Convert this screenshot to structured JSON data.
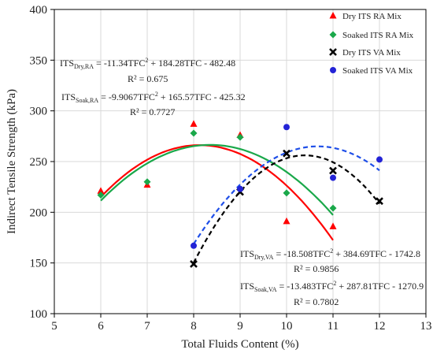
{
  "chart_data": {
    "type": "scatter",
    "xlabel": "Total Fluids Content (%)",
    "ylabel": "Indirect Tensile Strength (kPa)",
    "xlim": [
      5,
      13
    ],
    "ylim": [
      100,
      400
    ],
    "x_ticks": [
      "5",
      "6",
      "7",
      "8",
      "9",
      "10",
      "11",
      "12",
      "13"
    ],
    "y_ticks": [
      "100",
      "150",
      "200",
      "250",
      "300",
      "350",
      "400"
    ],
    "grid": true,
    "legend_position": "top-right",
    "series": [
      {
        "name": "Dry ITS RA Mix",
        "marker": "triangle",
        "color": "#ff0000",
        "x": [
          6,
          7,
          8,
          9,
          10,
          11
        ],
        "y": [
          221,
          227,
          287,
          276,
          191,
          186
        ],
        "fit": {
          "a": -11.34,
          "b": 184.28,
          "c": -482.48,
          "range": [
            6,
            11
          ],
          "color": "#ff0000",
          "dash": "solid"
        }
      },
      {
        "name": "Soaked ITS RA Mix",
        "marker": "diamond",
        "color": "#1aa84a",
        "x": [
          6,
          7,
          8,
          9,
          10,
          11
        ],
        "y": [
          217,
          230,
          278,
          274,
          219,
          204
        ],
        "fit": {
          "a": -9.9067,
          "b": 165.57,
          "c": -425.32,
          "range": [
            6,
            11
          ],
          "color": "#1aa84a",
          "dash": "solid"
        }
      },
      {
        "name": "Dry ITS VA Mix",
        "marker": "cross",
        "color": "#000000",
        "x": [
          8,
          9,
          10,
          11,
          12
        ],
        "y": [
          149,
          220,
          258,
          241,
          211
        ],
        "fit": {
          "a": -18.508,
          "b": 384.69,
          "c": -1742.8,
          "range": [
            8,
            12
          ],
          "color": "#000000",
          "dash": "dashed"
        }
      },
      {
        "name": "Soaked ITS VA Mix",
        "marker": "circle",
        "color": "#2323d6",
        "x": [
          8,
          9,
          10,
          11,
          12
        ],
        "y": [
          167,
          223,
          284,
          234,
          252
        ],
        "fit": {
          "a": -13.483,
          "b": 287.81,
          "c": -1270.9,
          "range": [
            8,
            12
          ],
          "color": "#1f4fe8",
          "dash": "dashed"
        }
      }
    ],
    "annotations": [
      {
        "prefix": "ITS",
        "sub": "Dry,RA",
        "eq_start": " = -11.34TFC",
        "sup": "2",
        "eq_end": " + 184.28TFC - 482.48",
        "r2": "R² = 0.675"
      },
      {
        "prefix": "ITS",
        "sub": "Soak,RA",
        "eq_start": " = -9.9067TFC",
        "sup": "2",
        "eq_end": " + 165.57TFC - 425.32",
        "r2": "R² = 0.7727"
      },
      {
        "prefix": "ITS",
        "sub": "Dry,VA",
        "eq_start": " = -18.508TFC",
        "sup": "2",
        "eq_end": " + 384.69TFC - 1742.8",
        "r2": "R² = 0.9856"
      },
      {
        "prefix": "ITS",
        "sub": "Soak,VA",
        "eq_start": " = -13.483TFC",
        "sup": "2",
        "eq_end": " + 287.81TFC - 1270.9",
        "r2": "R² = 0.7802"
      }
    ]
  }
}
